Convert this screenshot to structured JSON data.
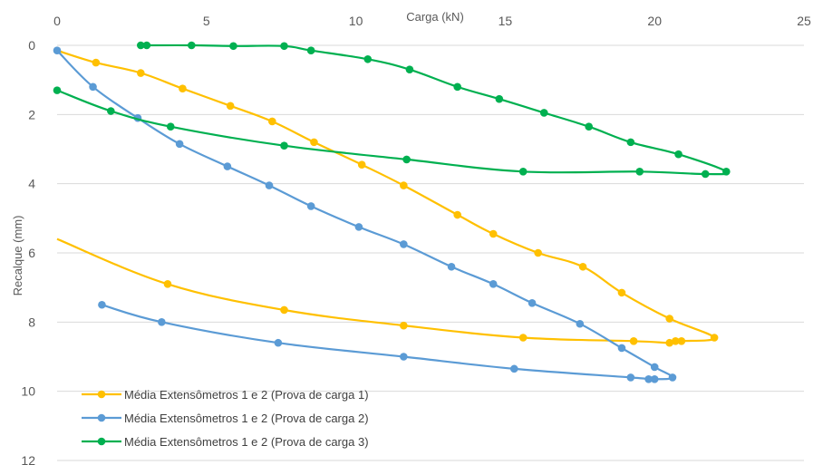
{
  "chart_data": {
    "type": "scatter",
    "xlabel": "Carga (kN)",
    "ylabel": "Recalque (mm)",
    "xlim": [
      0,
      25
    ],
    "ylim": [
      0,
      12
    ],
    "y_reversed": true,
    "x_ticks": [
      "0",
      "5",
      "10",
      "15",
      "20",
      "25"
    ],
    "y_ticks": [
      "0",
      "2",
      "4",
      "6",
      "8",
      "10",
      "12"
    ],
    "grid": "horizontal",
    "legend_position": "bottom-left",
    "series": [
      {
        "name": "Média Extensômetros 1 e 2 (Prova de carga 1)",
        "color": "#FFC000",
        "x": [
          0.0,
          1.3,
          2.8,
          4.2,
          5.8,
          7.2,
          8.6,
          10.2,
          11.6,
          13.4,
          14.6,
          16.1,
          17.6,
          18.9,
          20.5,
          22.0,
          20.9,
          20.7,
          20.5,
          19.3,
          15.6,
          11.6,
          7.6,
          3.7,
          0.0
        ],
        "y": [
          0.15,
          0.5,
          0.8,
          1.25,
          1.75,
          2.2,
          2.8,
          3.45,
          4.05,
          4.9,
          5.45,
          6.0,
          6.4,
          7.15,
          7.9,
          8.45,
          8.55,
          8.55,
          8.6,
          8.55,
          8.45,
          8.1,
          7.65,
          6.9,
          5.6
        ],
        "markers": [
          false,
          true,
          true,
          true,
          true,
          true,
          true,
          true,
          true,
          true,
          true,
          true,
          true,
          true,
          true,
          true,
          true,
          true,
          true,
          true,
          true,
          true,
          true,
          true,
          false
        ]
      },
      {
        "name": "Média Extensômetros 1 e 2 (Prova de carga 2)",
        "color": "#5B9BD5",
        "x": [
          0.0,
          1.2,
          2.7,
          4.1,
          5.7,
          7.1,
          8.5,
          10.1,
          11.6,
          13.2,
          14.6,
          15.9,
          17.5,
          18.9,
          20.0,
          20.6,
          20.0,
          19.8,
          19.2,
          15.3,
          11.6,
          7.4,
          3.5,
          1.5
        ],
        "y": [
          0.15,
          1.2,
          2.1,
          2.85,
          3.5,
          4.05,
          4.65,
          5.25,
          5.75,
          6.4,
          6.9,
          7.45,
          8.05,
          8.75,
          9.3,
          9.6,
          9.65,
          9.65,
          9.6,
          9.35,
          9.0,
          8.6,
          8.0,
          7.5
        ],
        "markers": [
          true,
          true,
          true,
          true,
          true,
          true,
          true,
          true,
          true,
          true,
          true,
          true,
          true,
          true,
          true,
          true,
          true,
          true,
          true,
          true,
          true,
          true,
          true,
          true
        ]
      },
      {
        "name": "Média Extensômetros 1 e 2 (Prova de carga 3)",
        "color": "#00B050",
        "x": [
          2.8,
          3.0,
          4.5,
          5.9,
          7.6,
          8.5,
          10.4,
          11.8,
          13.4,
          14.8,
          16.3,
          17.8,
          19.2,
          20.8,
          22.4,
          21.7,
          19.5,
          15.6,
          11.7,
          7.6,
          3.8,
          1.8,
          0.0
        ],
        "y": [
          0.0,
          0.0,
          0.0,
          0.02,
          0.02,
          0.15,
          0.4,
          0.7,
          1.2,
          1.55,
          1.95,
          2.35,
          2.8,
          3.15,
          3.65,
          3.72,
          3.65,
          3.65,
          3.3,
          2.9,
          2.35,
          1.9,
          1.3
        ],
        "markers": [
          true,
          true,
          true,
          true,
          true,
          true,
          true,
          true,
          true,
          true,
          true,
          true,
          true,
          true,
          true,
          true,
          true,
          true,
          true,
          true,
          true,
          true,
          true
        ]
      }
    ]
  }
}
